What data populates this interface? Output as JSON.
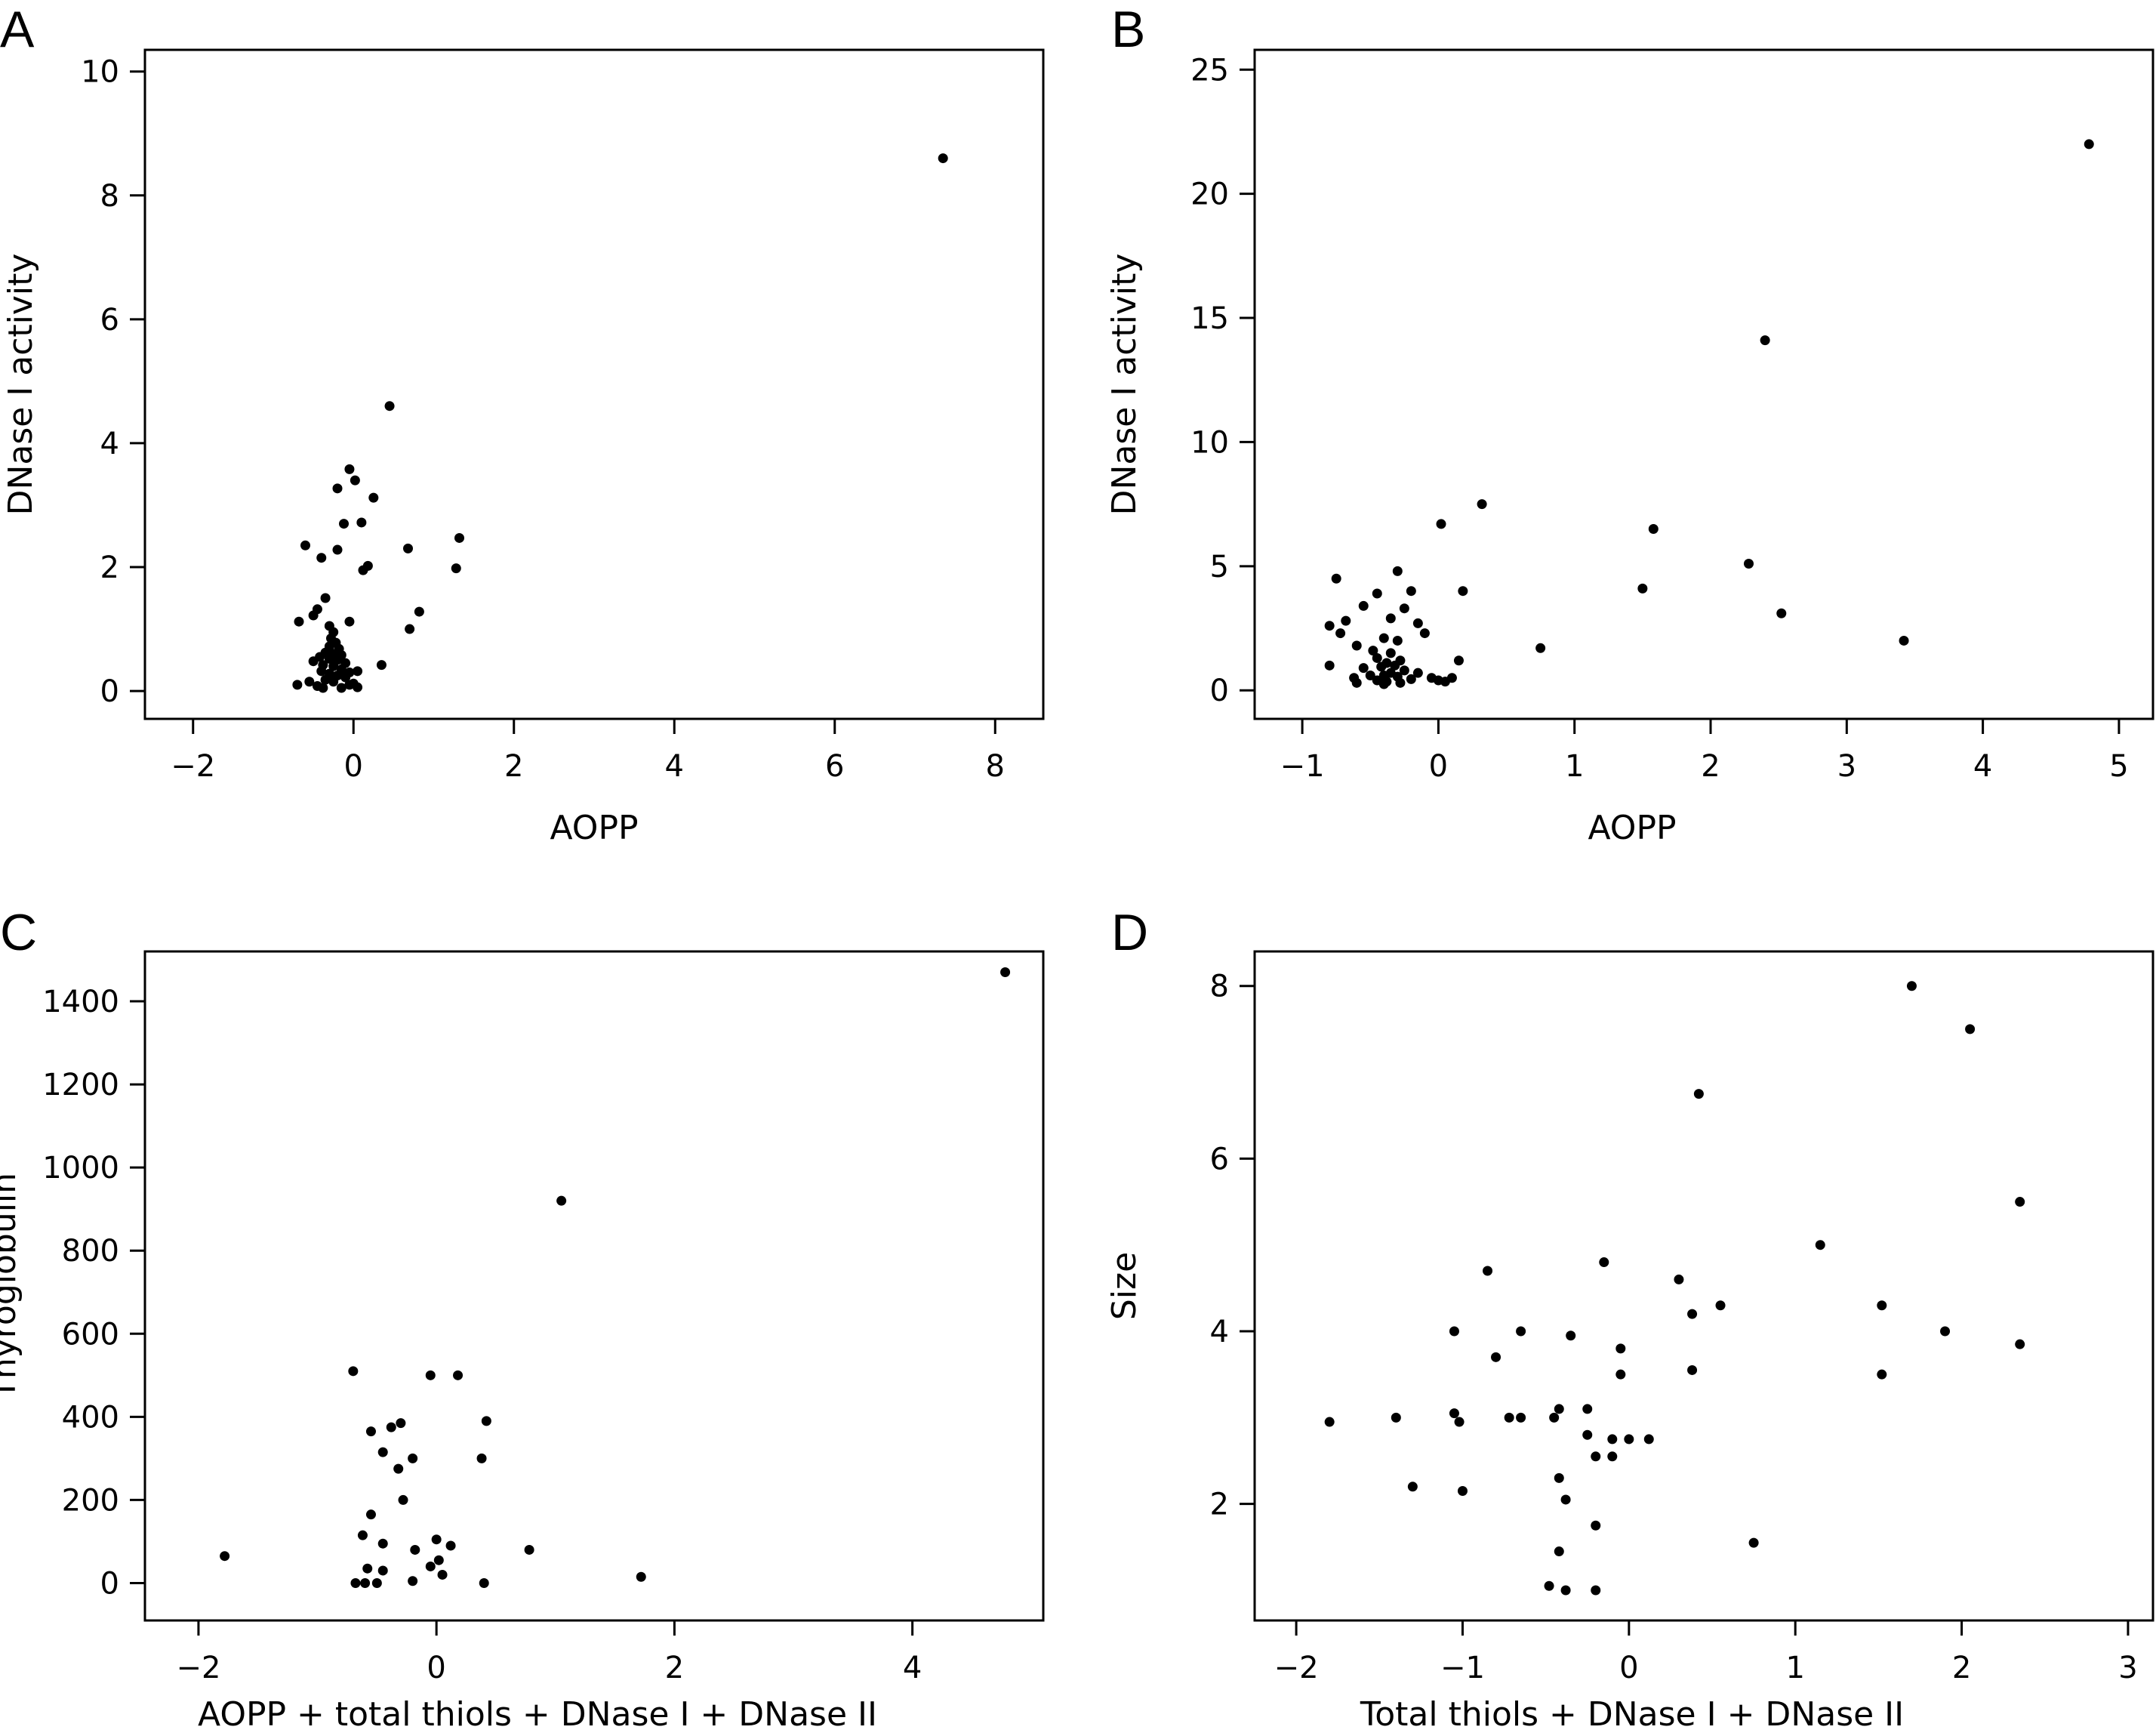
{
  "chart_data": [
    {
      "panel": "A",
      "type": "scatter",
      "xlabel": "AOPP",
      "ylabel": "DNase I activity",
      "xlim": [
        -2.6,
        8.6
      ],
      "ylim": [
        -0.45,
        10.35
      ],
      "xticks": [
        -2,
        0,
        2,
        4,
        6,
        8
      ],
      "yticks": [
        0,
        2,
        4,
        6,
        8,
        10
      ],
      "grid": false,
      "points": [
        [
          7.35,
          8.6
        ],
        [
          0.45,
          4.6
        ],
        [
          -0.05,
          3.58
        ],
        [
          0.02,
          3.4
        ],
        [
          -0.2,
          3.27
        ],
        [
          0.25,
          3.12
        ],
        [
          0.1,
          2.72
        ],
        [
          -0.12,
          2.7
        ],
        [
          1.32,
          2.47
        ],
        [
          -0.6,
          2.35
        ],
        [
          0.68,
          2.3
        ],
        [
          -0.2,
          2.28
        ],
        [
          -0.4,
          2.15
        ],
        [
          0.18,
          2.02
        ],
        [
          0.12,
          1.95
        ],
        [
          1.28,
          1.98
        ],
        [
          -0.35,
          1.5
        ],
        [
          -0.45,
          1.32
        ],
        [
          -0.5,
          1.22
        ],
        [
          0.82,
          1.28
        ],
        [
          -0.68,
          1.12
        ],
        [
          -0.05,
          1.12
        ],
        [
          -0.3,
          1.05
        ],
        [
          0.7,
          1.0
        ],
        [
          -0.25,
          0.95
        ],
        [
          -0.28,
          0.85
        ],
        [
          -0.22,
          0.78
        ],
        [
          -0.3,
          0.72
        ],
        [
          -0.18,
          0.68
        ],
        [
          -0.35,
          0.62
        ],
        [
          -0.25,
          0.6
        ],
        [
          -0.15,
          0.58
        ],
        [
          -0.42,
          0.55
        ],
        [
          -0.3,
          0.52
        ],
        [
          -0.2,
          0.5
        ],
        [
          -0.5,
          0.48
        ],
        [
          -0.1,
          0.45
        ],
        [
          -0.38,
          0.42
        ],
        [
          -0.25,
          0.4
        ],
        [
          0.35,
          0.42
        ],
        [
          -0.15,
          0.35
        ],
        [
          -0.4,
          0.32
        ],
        [
          -0.05,
          0.3
        ],
        [
          0.05,
          0.32
        ],
        [
          -0.3,
          0.28
        ],
        [
          -0.2,
          0.25
        ],
        [
          -0.1,
          0.22
        ],
        [
          -0.35,
          0.18
        ],
        [
          -0.55,
          0.15
        ],
        [
          -0.25,
          0.15
        ],
        [
          -0.7,
          0.1
        ],
        [
          -0.45,
          0.08
        ],
        [
          -0.05,
          0.1
        ],
        [
          0.0,
          0.12
        ],
        [
          -0.38,
          0.05
        ],
        [
          -0.15,
          0.05
        ],
        [
          0.05,
          0.06
        ]
      ]
    },
    {
      "panel": "B",
      "type": "scatter",
      "xlabel": "AOPP",
      "ylabel": "DNase I activity",
      "xlim": [
        -1.35,
        5.25
      ],
      "ylim": [
        -1.15,
        25.8
      ],
      "xticks": [
        -1,
        0,
        1,
        2,
        3,
        4,
        5
      ],
      "yticks": [
        0,
        5,
        10,
        15,
        20,
        25
      ],
      "grid": false,
      "points": [
        [
          4.78,
          22.0
        ],
        [
          2.4,
          14.1
        ],
        [
          0.32,
          7.5
        ],
        [
          0.02,
          6.7
        ],
        [
          1.58,
          6.5
        ],
        [
          2.28,
          5.1
        ],
        [
          -0.3,
          4.8
        ],
        [
          -0.75,
          4.5
        ],
        [
          1.5,
          4.1
        ],
        [
          -0.2,
          4.0
        ],
        [
          0.18,
          4.0
        ],
        [
          -0.45,
          3.9
        ],
        [
          -0.55,
          3.4
        ],
        [
          -0.25,
          3.3
        ],
        [
          2.52,
          3.1
        ],
        [
          -0.8,
          2.6
        ],
        [
          -0.68,
          2.8
        ],
        [
          -0.35,
          2.9
        ],
        [
          -0.15,
          2.7
        ],
        [
          -0.72,
          2.3
        ],
        [
          -0.1,
          2.3
        ],
        [
          -0.4,
          2.1
        ],
        [
          3.42,
          2.0
        ],
        [
          -0.3,
          2.0
        ],
        [
          -0.6,
          1.8
        ],
        [
          -0.48,
          1.6
        ],
        [
          0.75,
          1.7
        ],
        [
          -0.35,
          1.5
        ],
        [
          -0.45,
          1.3
        ],
        [
          -0.28,
          1.2
        ],
        [
          -0.38,
          1.1
        ],
        [
          -0.32,
          1.0
        ],
        [
          -0.42,
          0.95
        ],
        [
          0.15,
          1.2
        ],
        [
          -0.8,
          1.0
        ],
        [
          -0.55,
          0.9
        ],
        [
          -0.25,
          0.8
        ],
        [
          -0.35,
          0.7
        ],
        [
          -0.5,
          0.6
        ],
        [
          -0.4,
          0.6
        ],
        [
          -0.3,
          0.55
        ],
        [
          -0.15,
          0.7
        ],
        [
          -0.62,
          0.5
        ],
        [
          -0.45,
          0.4
        ],
        [
          -0.38,
          0.35
        ],
        [
          -0.28,
          0.3
        ],
        [
          0.1,
          0.5
        ],
        [
          0.0,
          0.4
        ],
        [
          -0.2,
          0.45
        ],
        [
          -0.05,
          0.5
        ],
        [
          -0.4,
          0.25
        ],
        [
          -0.6,
          0.3
        ],
        [
          0.05,
          0.35
        ]
      ]
    },
    {
      "panel": "C",
      "type": "scatter",
      "xlabel": "AOPP + total thiols + DNase I + DNase II",
      "ylabel": "Thyroglobulin",
      "xlim": [
        -2.45,
        5.1
      ],
      "ylim": [
        -90,
        1520
      ],
      "xticks": [
        -2,
        0,
        2,
        4
      ],
      "yticks": [
        0,
        200,
        400,
        600,
        800,
        1000,
        1200,
        1400
      ],
      "grid": false,
      "points": [
        [
          4.78,
          1470
        ],
        [
          1.05,
          920
        ],
        [
          -0.7,
          510
        ],
        [
          -0.05,
          500
        ],
        [
          0.18,
          500
        ],
        [
          0.42,
          390
        ],
        [
          -0.3,
          385
        ],
        [
          -0.38,
          375
        ],
        [
          -0.55,
          365
        ],
        [
          -0.45,
          315
        ],
        [
          -0.2,
          300
        ],
        [
          0.38,
          300
        ],
        [
          -0.32,
          275
        ],
        [
          -0.28,
          200
        ],
        [
          -0.55,
          165
        ],
        [
          -1.78,
          65
        ],
        [
          -0.62,
          115
        ],
        [
          0.0,
          105
        ],
        [
          -0.45,
          95
        ],
        [
          0.12,
          90
        ],
        [
          -0.18,
          80
        ],
        [
          0.78,
          80
        ],
        [
          0.02,
          55
        ],
        [
          -0.05,
          40
        ],
        [
          -0.58,
          35
        ],
        [
          -0.45,
          30
        ],
        [
          0.05,
          20
        ],
        [
          1.72,
          15
        ],
        [
          -0.68,
          0
        ],
        [
          -0.6,
          0
        ],
        [
          -0.5,
          0
        ],
        [
          -0.2,
          5
        ],
        [
          0.4,
          0
        ]
      ]
    },
    {
      "panel": "D",
      "type": "scatter",
      "xlabel": "Total thiols + DNase I + DNase II",
      "ylabel": "Size",
      "xlim": [
        -2.25,
        3.15
      ],
      "ylim": [
        0.65,
        8.4
      ],
      "xticks": [
        -2,
        -1,
        0,
        1,
        2,
        3
      ],
      "yticks": [
        2,
        4,
        6,
        8
      ],
      "grid": false,
      "points": [
        [
          1.7,
          8.0
        ],
        [
          2.05,
          7.5
        ],
        [
          0.42,
          6.75
        ],
        [
          2.35,
          5.5
        ],
        [
          1.15,
          5.0
        ],
        [
          -0.15,
          4.8
        ],
        [
          -0.85,
          4.7
        ],
        [
          0.3,
          4.6
        ],
        [
          1.52,
          4.3
        ],
        [
          0.55,
          4.3
        ],
        [
          0.38,
          4.2
        ],
        [
          -1.05,
          4.0
        ],
        [
          -0.65,
          4.0
        ],
        [
          1.9,
          4.0
        ],
        [
          -0.35,
          3.95
        ],
        [
          2.35,
          3.85
        ],
        [
          -0.05,
          3.8
        ],
        [
          -0.8,
          3.7
        ],
        [
          0.38,
          3.55
        ],
        [
          -0.05,
          3.5
        ],
        [
          1.52,
          3.5
        ],
        [
          -0.42,
          3.1
        ],
        [
          -0.25,
          3.1
        ],
        [
          -1.05,
          3.05
        ],
        [
          -1.4,
          3.0
        ],
        [
          -0.72,
          3.0
        ],
        [
          -0.65,
          3.0
        ],
        [
          -0.45,
          3.0
        ],
        [
          -1.02,
          2.95
        ],
        [
          -1.8,
          2.95
        ],
        [
          -0.25,
          2.8
        ],
        [
          -0.1,
          2.75
        ],
        [
          0.0,
          2.75
        ],
        [
          0.12,
          2.75
        ],
        [
          -0.2,
          2.55
        ],
        [
          -0.1,
          2.55
        ],
        [
          -0.42,
          2.3
        ],
        [
          -1.3,
          2.2
        ],
        [
          -1.0,
          2.15
        ],
        [
          -0.38,
          2.05
        ],
        [
          -0.2,
          1.75
        ],
        [
          0.75,
          1.55
        ],
        [
          -0.42,
          1.45
        ],
        [
          -0.48,
          1.05
        ],
        [
          -0.38,
          1.0
        ],
        [
          -0.2,
          1.0
        ]
      ]
    }
  ]
}
